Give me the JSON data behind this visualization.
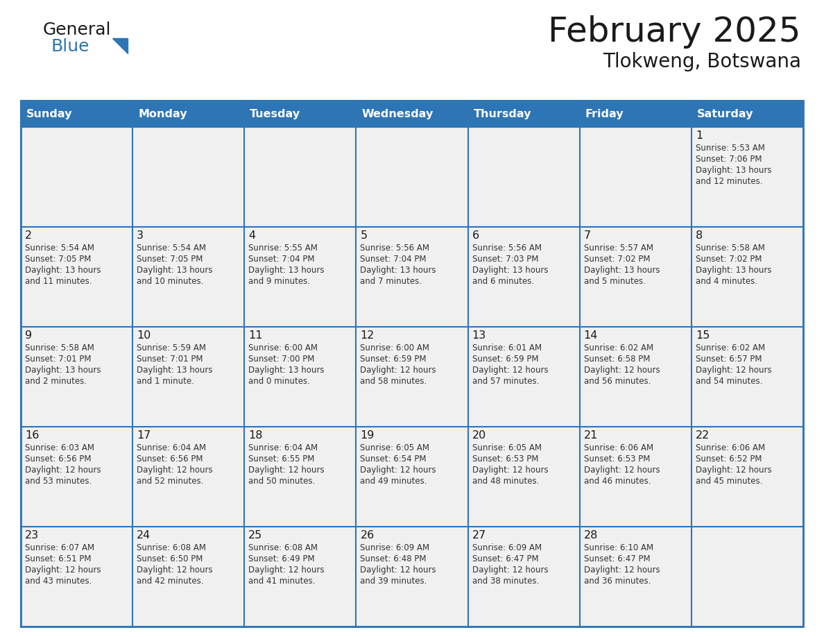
{
  "title": "February 2025",
  "subtitle": "Tlokweng, Botswana",
  "days_of_week": [
    "Sunday",
    "Monday",
    "Tuesday",
    "Wednesday",
    "Thursday",
    "Friday",
    "Saturday"
  ],
  "header_bg": "#2E75B6",
  "header_text": "#FFFFFF",
  "cell_bg": "#F0F0F0",
  "border_color": "#2E75B6",
  "text_color": "#333333",
  "day_number_color": "#1a1a1a",
  "calendar_data": [
    [
      null,
      null,
      null,
      null,
      null,
      null,
      1
    ],
    [
      2,
      3,
      4,
      5,
      6,
      7,
      8
    ],
    [
      9,
      10,
      11,
      12,
      13,
      14,
      15
    ],
    [
      16,
      17,
      18,
      19,
      20,
      21,
      22
    ],
    [
      23,
      24,
      25,
      26,
      27,
      28,
      null
    ]
  ],
  "sunrise_data": {
    "1": "5:53 AM",
    "2": "5:54 AM",
    "3": "5:54 AM",
    "4": "5:55 AM",
    "5": "5:56 AM",
    "6": "5:56 AM",
    "7": "5:57 AM",
    "8": "5:58 AM",
    "9": "5:58 AM",
    "10": "5:59 AM",
    "11": "6:00 AM",
    "12": "6:00 AM",
    "13": "6:01 AM",
    "14": "6:02 AM",
    "15": "6:02 AM",
    "16": "6:03 AM",
    "17": "6:04 AM",
    "18": "6:04 AM",
    "19": "6:05 AM",
    "20": "6:05 AM",
    "21": "6:06 AM",
    "22": "6:06 AM",
    "23": "6:07 AM",
    "24": "6:08 AM",
    "25": "6:08 AM",
    "26": "6:09 AM",
    "27": "6:09 AM",
    "28": "6:10 AM"
  },
  "sunset_data": {
    "1": "7:06 PM",
    "2": "7:05 PM",
    "3": "7:05 PM",
    "4": "7:04 PM",
    "5": "7:04 PM",
    "6": "7:03 PM",
    "7": "7:02 PM",
    "8": "7:02 PM",
    "9": "7:01 PM",
    "10": "7:01 PM",
    "11": "7:00 PM",
    "12": "6:59 PM",
    "13": "6:59 PM",
    "14": "6:58 PM",
    "15": "6:57 PM",
    "16": "6:56 PM",
    "17": "6:56 PM",
    "18": "6:55 PM",
    "19": "6:54 PM",
    "20": "6:53 PM",
    "21": "6:53 PM",
    "22": "6:52 PM",
    "23": "6:51 PM",
    "24": "6:50 PM",
    "25": "6:49 PM",
    "26": "6:48 PM",
    "27": "6:47 PM",
    "28": "6:47 PM"
  },
  "daylight_data": {
    "1": "13 hours and 12 minutes.",
    "2": "13 hours and 11 minutes.",
    "3": "13 hours and 10 minutes.",
    "4": "13 hours and 9 minutes.",
    "5": "13 hours and 7 minutes.",
    "6": "13 hours and 6 minutes.",
    "7": "13 hours and 5 minutes.",
    "8": "13 hours and 4 minutes.",
    "9": "13 hours and 2 minutes.",
    "10": "13 hours and 1 minute.",
    "11": "13 hours and 0 minutes.",
    "12": "12 hours and 58 minutes.",
    "13": "12 hours and 57 minutes.",
    "14": "12 hours and 56 minutes.",
    "15": "12 hours and 54 minutes.",
    "16": "12 hours and 53 minutes.",
    "17": "12 hours and 52 minutes.",
    "18": "12 hours and 50 minutes.",
    "19": "12 hours and 49 minutes.",
    "20": "12 hours and 48 minutes.",
    "21": "12 hours and 46 minutes.",
    "22": "12 hours and 45 minutes.",
    "23": "12 hours and 43 minutes.",
    "24": "12 hours and 42 minutes.",
    "25": "12 hours and 41 minutes.",
    "26": "12 hours and 39 minutes.",
    "27": "12 hours and 38 minutes.",
    "28": "12 hours and 36 minutes."
  }
}
